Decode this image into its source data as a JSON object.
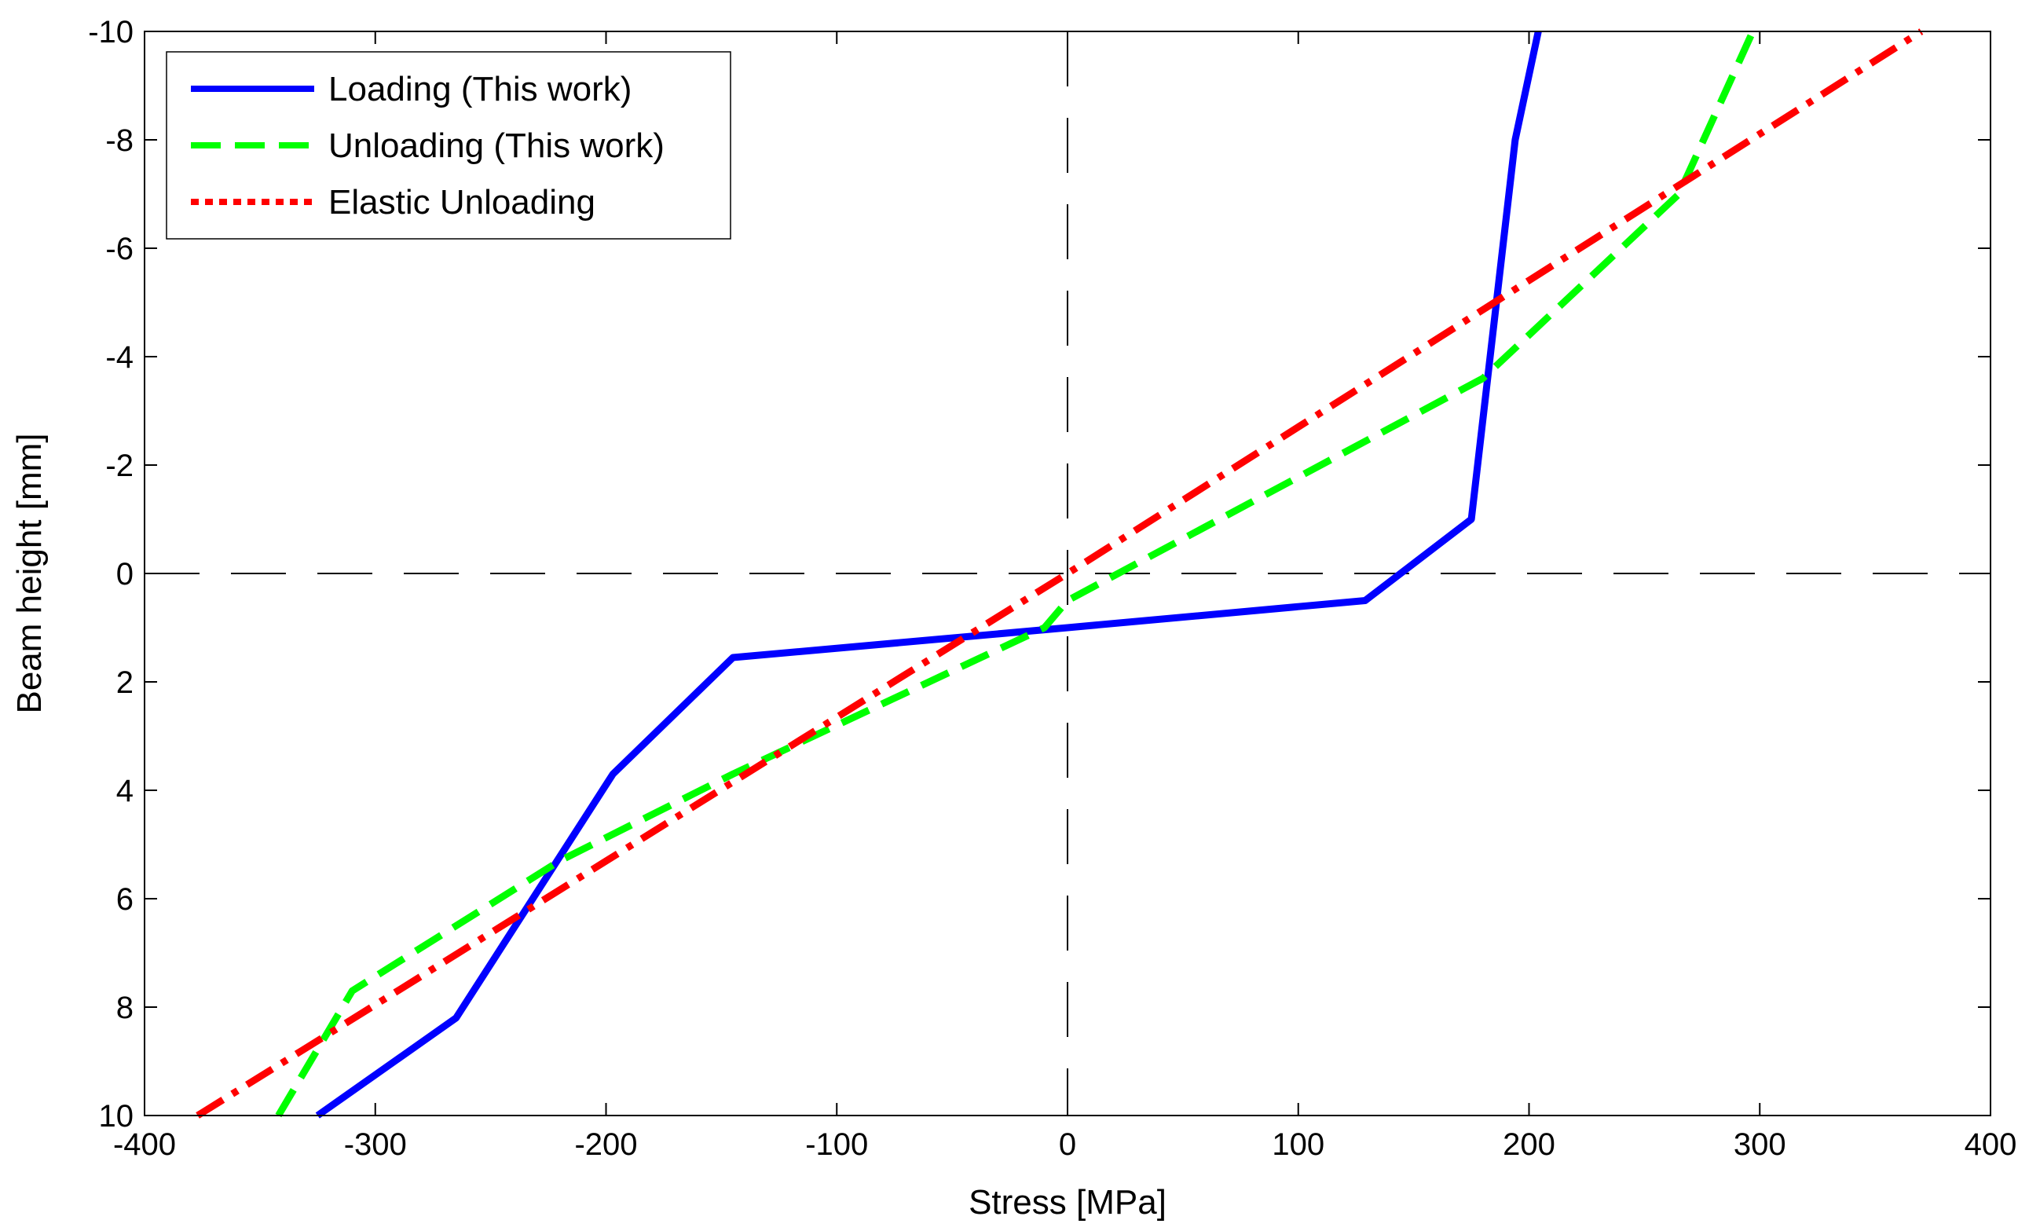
{
  "chart_data": {
    "type": "line",
    "title": "",
    "xlabel": "Stress [MPa]",
    "ylabel": "Beam height [mm]",
    "xlim": [
      -400,
      400
    ],
    "ylim": [
      -10,
      10
    ],
    "y_axis_reversed": true,
    "x_ticks": [
      -400,
      -300,
      -200,
      -100,
      0,
      100,
      200,
      300,
      400
    ],
    "y_ticks": [
      -10,
      -8,
      -6,
      -4,
      -2,
      0,
      2,
      4,
      6,
      8,
      10
    ],
    "grid": false,
    "legend_position": "top-left",
    "reference_lines": [
      {
        "orientation": "vertical",
        "value": 0,
        "style": "long-dash",
        "color": "#000000"
      },
      {
        "orientation": "horizontal",
        "value": 0,
        "style": "long-dash",
        "color": "#000000"
      }
    ],
    "series": [
      {
        "name": "Loading (This work)",
        "color": "#0000ff",
        "style": "solid",
        "x": [
          -325,
          -265,
          -197,
          -145,
          0,
          129,
          175,
          194,
          204
        ],
        "y": [
          10,
          8.2,
          3.7,
          1.55,
          1,
          0.5,
          -1,
          -8,
          -10
        ]
      },
      {
        "name": "Unloading (This work)",
        "color": "#00ff00",
        "style": "dashed",
        "x": [
          -342,
          -310,
          -220,
          -145,
          -10,
          0,
          180,
          265,
          297
        ],
        "y": [
          10,
          7.7,
          5.3,
          3.7,
          1,
          0.5,
          -3.6,
          -7,
          -10
        ]
      },
      {
        "name": "Elastic Unloading",
        "color": "#ff0000",
        "style": "dash-dot",
        "legend_style": "dotted",
        "x": [
          -377,
          0,
          370
        ],
        "y": [
          10,
          0,
          -10
        ]
      }
    ]
  }
}
